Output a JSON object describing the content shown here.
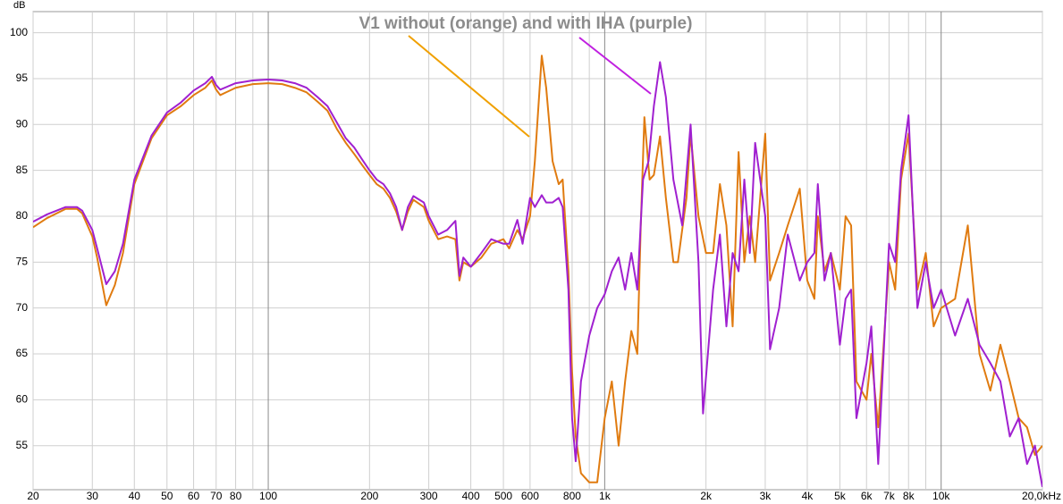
{
  "chart_data": {
    "type": "line",
    "title": "V1 without (orange) and with IHA (purple)",
    "ylabel": "dB",
    "xscale": "log",
    "grid": true,
    "xlim": [
      20,
      20000
    ],
    "ylim": [
      50.2,
      102.3
    ],
    "yticks": [
      55,
      60,
      65,
      70,
      75,
      80,
      85,
      90,
      95,
      100
    ],
    "xticks": [
      20,
      30,
      40,
      50,
      60,
      70,
      80,
      100,
      200,
      300,
      400,
      500,
      600,
      800,
      {
        "value": 1000,
        "label": "1k"
      },
      {
        "value": 2000,
        "label": "2k"
      },
      {
        "value": 3000,
        "label": "3k"
      },
      {
        "value": 4000,
        "label": "4k"
      },
      {
        "value": 5000,
        "label": "5k"
      },
      {
        "value": 6000,
        "label": "6k"
      },
      {
        "value": 7000,
        "label": "7k"
      },
      {
        "value": 8000,
        "label": "8k"
      },
      {
        "value": 10000,
        "label": "10k"
      },
      {
        "value": 20000,
        "label": "20,0kHz"
      }
    ],
    "xgrid_minor": [
      90,
      900,
      9000
    ],
    "series": [
      {
        "name": "without IHA",
        "color": "#e07b10",
        "x": [
          20,
          22,
          25,
          27,
          28,
          30,
          31,
          33,
          35,
          37,
          40,
          45,
          50,
          55,
          60,
          65,
          68,
          70,
          72,
          80,
          90,
          100,
          110,
          120,
          130,
          140,
          150,
          160,
          170,
          180,
          190,
          200,
          210,
          220,
          230,
          240,
          250,
          260,
          270,
          290,
          300,
          320,
          340,
          360,
          370,
          380,
          400,
          430,
          460,
          500,
          520,
          550,
          570,
          600,
          620,
          650,
          670,
          700,
          730,
          750,
          780,
          800,
          820,
          850,
          900,
          950,
          1000,
          1050,
          1100,
          1150,
          1200,
          1250,
          1280,
          1312,
          1360,
          1400,
          1460,
          1520,
          1600,
          1650,
          1750,
          1800,
          1900,
          2000,
          2100,
          2200,
          2300,
          2400,
          2500,
          2600,
          2700,
          2800,
          3000,
          3100,
          3300,
          3500,
          3800,
          4000,
          4200,
          4300,
          4500,
          4700,
          5000,
          5200,
          5400,
          5600,
          6000,
          6200,
          6500,
          7000,
          7300,
          7600,
          8000,
          8500,
          9000,
          9500,
          10000,
          11000,
          12000,
          13000,
          14000,
          15000,
          16000,
          17000,
          18000,
          19000,
          20000
        ],
        "values": [
          78.8,
          79.8,
          80.8,
          80.8,
          80.3,
          77.8,
          75.5,
          70.3,
          72.5,
          76,
          83.5,
          88.5,
          91,
          92,
          93.2,
          94,
          94.8,
          93.8,
          93.2,
          94,
          94.4,
          94.5,
          94.4,
          94,
          93.5,
          92.5,
          91.5,
          89.5,
          88,
          86.8,
          85.6,
          84.5,
          83.5,
          83,
          82,
          80.5,
          78.5,
          80.5,
          81.8,
          81,
          79.5,
          77.5,
          77.8,
          77.5,
          73,
          75,
          74.5,
          75.5,
          77,
          77.5,
          76.5,
          78.5,
          77.5,
          80,
          86,
          97.5,
          94,
          86,
          83.5,
          84,
          74,
          63,
          56,
          52,
          51,
          51,
          58,
          62,
          55,
          62,
          67.5,
          65,
          79,
          90.8,
          84,
          84.5,
          88.7,
          82,
          75,
          75,
          82,
          89,
          80,
          76,
          76,
          83.5,
          79,
          68,
          87,
          75,
          80,
          75,
          89,
          73,
          76,
          79,
          83,
          73,
          71,
          80,
          74,
          76,
          72,
          80,
          79,
          62,
          60,
          65,
          57,
          75,
          72,
          84,
          89,
          72,
          76,
          68,
          70,
          71,
          79,
          65,
          61,
          66,
          62,
          58,
          57,
          54,
          55
        ]
      },
      {
        "name": "with IHA",
        "color": "#a020d0",
        "x": [
          20,
          22,
          25,
          27,
          28,
          30,
          31,
          33,
          35,
          37,
          40,
          45,
          50,
          55,
          60,
          65,
          68,
          70,
          72,
          80,
          90,
          100,
          110,
          120,
          130,
          140,
          150,
          160,
          170,
          180,
          190,
          200,
          210,
          220,
          230,
          240,
          250,
          260,
          270,
          290,
          300,
          320,
          340,
          360,
          370,
          380,
          400,
          430,
          460,
          500,
          520,
          550,
          570,
          600,
          620,
          650,
          670,
          700,
          730,
          750,
          780,
          800,
          820,
          850,
          900,
          950,
          1000,
          1050,
          1100,
          1150,
          1200,
          1250,
          1300,
          1350,
          1400,
          1460,
          1520,
          1600,
          1700,
          1800,
          1900,
          1960,
          2100,
          2200,
          2300,
          2400,
          2500,
          2600,
          2700,
          2800,
          3000,
          3100,
          3300,
          3500,
          3800,
          4000,
          4200,
          4300,
          4500,
          4700,
          5000,
          5200,
          5400,
          5600,
          6000,
          6200,
          6500,
          7000,
          7300,
          7600,
          8000,
          8500,
          9000,
          9500,
          10000,
          11000,
          12000,
          13000,
          14000,
          15000,
          16000,
          17000,
          18000,
          19000,
          20000
        ],
        "values": [
          79.4,
          80.2,
          81.0,
          81.0,
          80.6,
          78.5,
          76.5,
          72.6,
          74,
          77,
          84,
          88.8,
          91.3,
          92.4,
          93.7,
          94.5,
          95.2,
          94.3,
          93.8,
          94.5,
          94.8,
          94.9,
          94.8,
          94.5,
          94,
          93,
          92,
          90.2,
          88.5,
          87.5,
          86.2,
          85,
          84,
          83.5,
          82.5,
          81,
          78.5,
          81,
          82.2,
          81.5,
          80,
          78,
          78.5,
          79.5,
          73.5,
          75.5,
          74.5,
          76,
          77.5,
          77,
          77,
          79.6,
          77,
          82,
          81,
          82.3,
          81.5,
          81.5,
          82,
          81,
          72,
          58,
          53.3,
          62,
          67,
          70,
          71.5,
          74,
          75.5,
          72,
          76,
          72,
          84,
          86,
          92,
          96.8,
          93,
          84,
          79,
          90,
          75,
          58.5,
          72,
          78,
          68,
          76,
          74,
          84,
          76,
          88,
          80,
          65.5,
          70,
          78,
          73,
          75,
          76,
          83.5,
          73,
          76,
          66,
          71,
          72,
          58,
          64,
          68,
          53,
          77,
          75,
          85,
          91,
          70,
          75,
          70,
          72,
          67,
          71,
          66,
          64,
          62,
          56,
          58,
          53,
          55,
          50.5
        ]
      }
    ]
  }
}
